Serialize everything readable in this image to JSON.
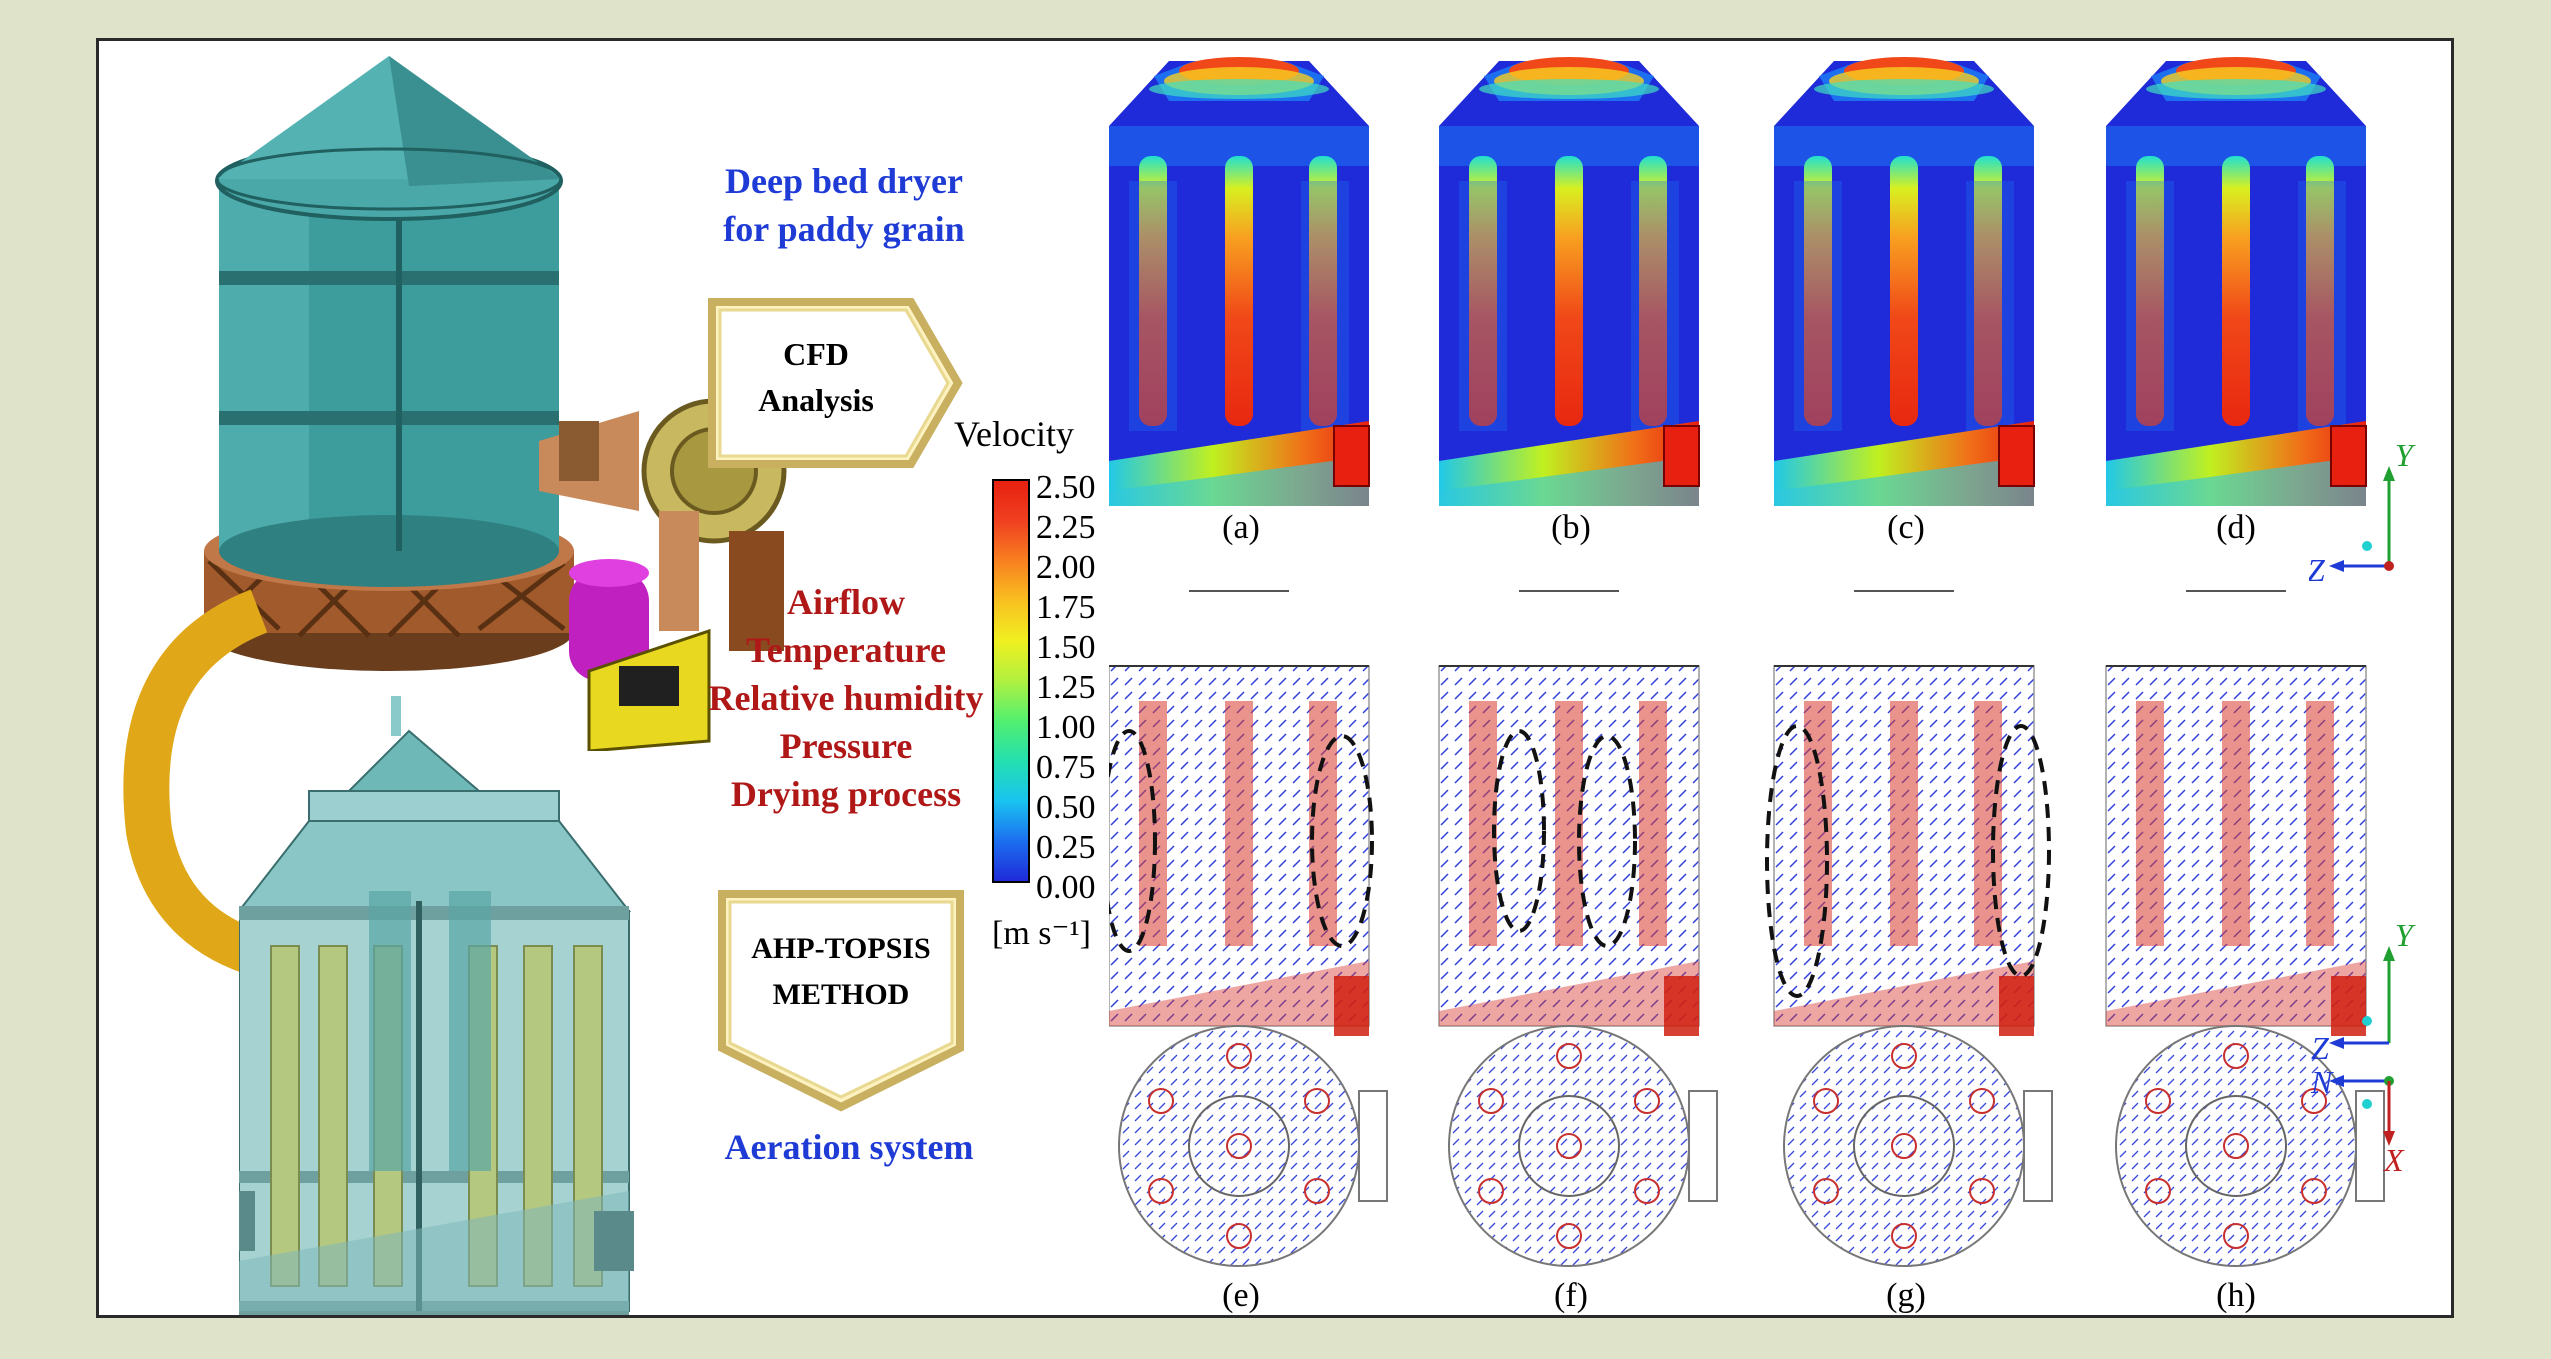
{
  "left_text": {
    "title_line1": "Deep bed dryer",
    "title_line2": "for paddy grain",
    "cfd_line1": "CFD",
    "cfd_line2": "Analysis",
    "params": [
      "Airflow",
      "Temperature",
      "Relative humidity",
      "Pressure",
      "Drying process"
    ],
    "ahp_line1": "AHP-TOPSIS",
    "ahp_line2": "METHOD",
    "aeration": "Aeration system"
  },
  "colorbar": {
    "title": "Velocity",
    "ticks": [
      "2.50",
      "2.25",
      "2.00",
      "1.75",
      "1.50",
      "1.25",
      "1.00",
      "0.75",
      "0.50",
      "0.25",
      "0.00"
    ],
    "unit": "[m s⁻¹]",
    "colors": [
      "#1f2ad8",
      "#1c6ff0",
      "#19c3f0",
      "#24e0b0",
      "#52f070",
      "#b0f040",
      "#f0f020",
      "#f8c020",
      "#f88020",
      "#f04020",
      "#e82010"
    ]
  },
  "panel_labels": [
    "(a)",
    "(b)",
    "(c)",
    "(d)",
    "(e)",
    "(f)",
    "(g)",
    "(h)"
  ],
  "axes": {
    "top": {
      "vertical": "Y",
      "horizontal": "Z"
    },
    "bottom": {
      "vertical": "Y",
      "horizontal1": "Z",
      "horizontal2": "N",
      "down": "X"
    }
  },
  "colors": {
    "background": "#dfe3c9",
    "dryer_teal": "#3d9c9c",
    "arrow_gold": "#e0a818",
    "title_blue": "#1f3bd6",
    "param_red": "#b01818"
  }
}
